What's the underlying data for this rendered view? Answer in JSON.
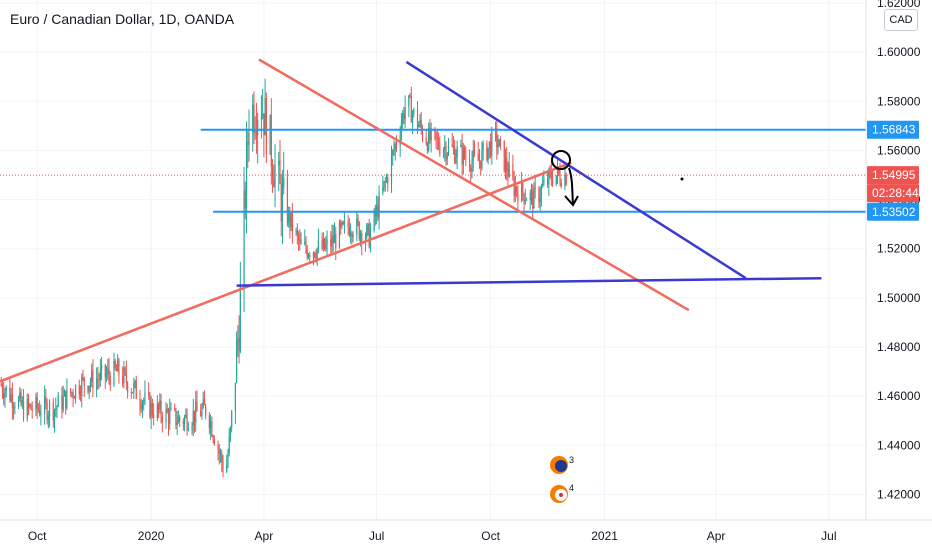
{
  "title": "Euro / Canadian Dollar, 1D, OANDA",
  "currency_badge": "CAD",
  "chart_data": {
    "type": "candlestick",
    "symbol": "Euro / Canadian Dollar",
    "interval": "1D",
    "source": "OANDA",
    "x_ticks": [
      "Oct",
      "2020",
      "Apr",
      "Jul",
      "Oct",
      "2021",
      "Apr",
      "Jul"
    ],
    "y_ticks": [
      "1.62000",
      "1.60000",
      "1.58000",
      "1.56000",
      "1.54000",
      "1.52000",
      "1.50000",
      "1.48000",
      "1.46000",
      "1.44000",
      "1.42000"
    ],
    "ylim": [
      1.41,
      1.62
    ],
    "date_range": [
      "2019-09-01",
      "2021-07-31"
    ],
    "price_path": [
      [
        "2019-09-01",
        1.465
      ],
      [
        "2019-09-20",
        1.455
      ],
      [
        "2019-10-15",
        1.455
      ],
      [
        "2019-11-05",
        1.465
      ],
      [
        "2019-12-05",
        1.47
      ],
      [
        "2020-01-01",
        1.455
      ],
      [
        "2020-01-25",
        1.45
      ],
      [
        "2020-02-15",
        1.455
      ],
      [
        "2020-03-01",
        1.428
      ],
      [
        "2020-03-05",
        1.445
      ],
      [
        "2020-03-12",
        1.49
      ],
      [
        "2020-03-20",
        1.575
      ],
      [
        "2020-03-30",
        1.58
      ],
      [
        "2020-04-15",
        1.54
      ],
      [
        "2020-05-01",
        1.52
      ],
      [
        "2020-05-20",
        1.52
      ],
      [
        "2020-06-10",
        1.53
      ],
      [
        "2020-06-25",
        1.525
      ],
      [
        "2020-07-10",
        1.55
      ],
      [
        "2020-07-25",
        1.58
      ],
      [
        "2020-08-10",
        1.565
      ],
      [
        "2020-09-01",
        1.56
      ],
      [
        "2020-09-20",
        1.555
      ],
      [
        "2020-10-05",
        1.565
      ],
      [
        "2020-10-20",
        1.545
      ],
      [
        "2020-11-05",
        1.54
      ],
      [
        "2020-11-20",
        1.55
      ],
      [
        "2020-12-01",
        1.55
      ]
    ],
    "horizontal_levels": [
      1.56843,
      1.53502
    ],
    "trend_lines": [
      {
        "color": "#ef6c5e",
        "from": [
          "2019-09-01",
          1.466
        ],
        "to": [
          "2020-12-05",
          1.555
        ]
      },
      {
        "color": "#ef6c5e",
        "from": [
          "2020-03-28",
          1.597
        ],
        "to": [
          "2021-03-10",
          1.495
        ]
      },
      {
        "color": "#3a3ad1",
        "from": [
          "2020-07-25",
          1.596
        ],
        "to": [
          "2021-04-25",
          1.508
        ]
      },
      {
        "color": "#3a3ad1",
        "from": [
          "2020-03-10",
          1.505
        ],
        "to": [
          "2021-06-25",
          1.508
        ]
      }
    ],
    "price_tags": [
      {
        "label": "1.56843",
        "value": 1.56843,
        "color": "#2196f3"
      },
      {
        "label": "1.54995",
        "value": 1.54995,
        "color": "#ef5350"
      },
      {
        "label": "02:28:44",
        "value": 1.5426,
        "color": "#ef5350"
      },
      {
        "label": "1.53502",
        "value": 1.53502,
        "color": "#2196f3"
      }
    ],
    "current_price": 1.54995,
    "colors": {
      "up": "#26a69a",
      "down": "#ef5350",
      "level": "#2196f3",
      "grid": "#f0f3fa"
    }
  },
  "event_markers": [
    "3",
    "4"
  ]
}
